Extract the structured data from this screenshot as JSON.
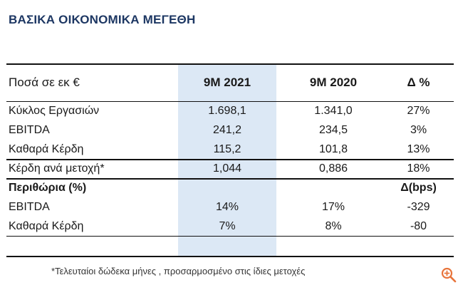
{
  "title": "ΒΑΣΙΚΑ ΟΙΚΟΝΟΜΙΚΑ ΜΕΓΕΘΗ",
  "table": {
    "header": [
      "Ποσά σε εκ €",
      "9M 2021",
      "9M 2020",
      "Δ %"
    ],
    "rows": [
      [
        "Κύκλος Εργασιών",
        "1.698,1",
        "1.341,0",
        "27%"
      ],
      [
        "EBITDA",
        "241,2",
        "234,5",
        "3%"
      ],
      [
        "Καθαρά Κέρδη",
        "115,2",
        "101,8",
        "13%"
      ],
      [
        "Κέρδη ανά μετοχή*",
        "1,044",
        "0,886",
        "18%"
      ]
    ],
    "margins_header": [
      "Περιθώρια (%)",
      "Δ(bps)"
    ],
    "margin_rows": [
      [
        "EBITDA",
        "14%",
        "17%",
        "-329"
      ],
      [
        "Καθαρά Κέρδη",
        "7%",
        "8%",
        "-80"
      ]
    ]
  },
  "footnote": "*Τελευταίοι δώδεκα μήνες , προσαρμοσμένο στις ίδιες μετοχές",
  "colors": {
    "title": "#1d3763",
    "highlight_column": "#dce8f5",
    "zoom_icon": "#e8743b"
  },
  "icons": {
    "zoom": "zoom-in-icon"
  }
}
